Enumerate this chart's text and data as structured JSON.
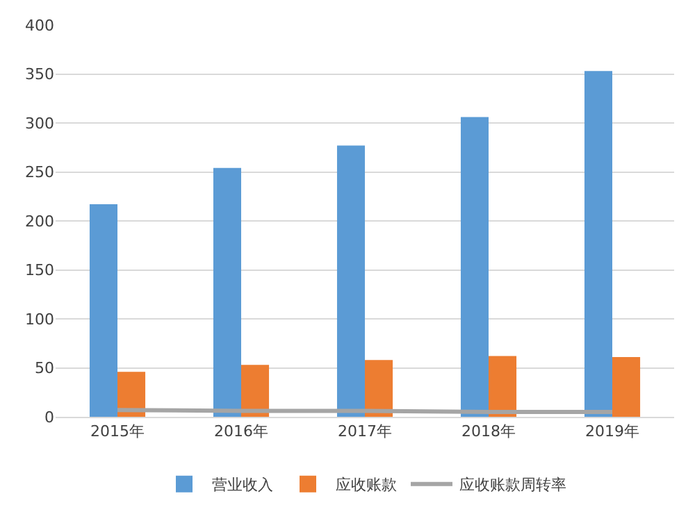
{
  "chart_data": {
    "type": "bar",
    "categories": [
      "2015年",
      "2016年",
      "2017年",
      "2018年",
      "2019年"
    ],
    "series": [
      {
        "name": "营业收入",
        "color": "#5b9bd5",
        "values": [
          217,
          254,
          277,
          306,
          353
        ]
      },
      {
        "name": "应收账款",
        "color": "#ed7d31",
        "values": [
          46,
          53,
          58,
          62,
          61
        ]
      },
      {
        "name": "应收账款周转率",
        "color": "#a5a5a5",
        "type": "line",
        "values": [
          7,
          6,
          6,
          5,
          5
        ]
      }
    ],
    "ylim": [
      0,
      400
    ],
    "yticks": [
      0,
      50,
      100,
      150,
      200,
      250,
      300,
      350,
      400
    ],
    "grid": "y",
    "legend": "bottom",
    "marker": "none",
    "line_style": "solid"
  }
}
